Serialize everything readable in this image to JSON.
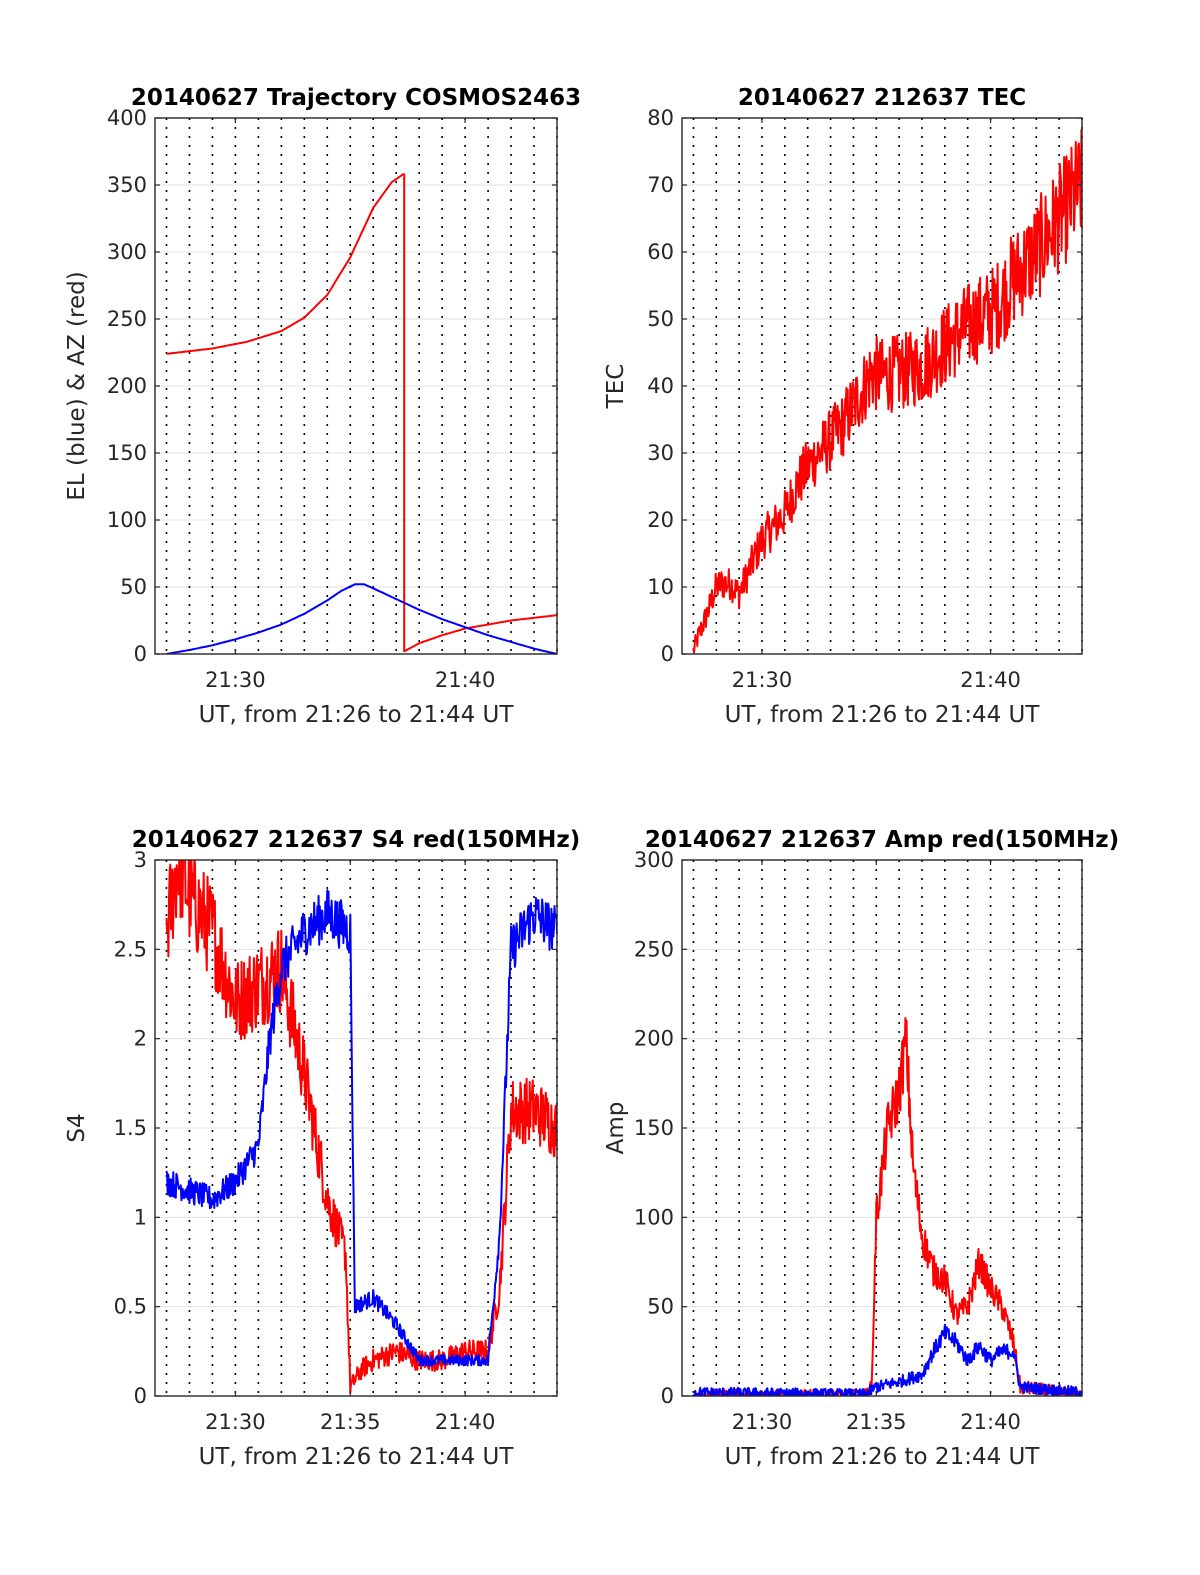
{
  "colors": {
    "red": "#ff0000",
    "blue": "#0000ff",
    "grid": "#e0e0e0",
    "dotted": "#000000",
    "axis": "#262626"
  },
  "chart_data": [
    {
      "id": "trajectory",
      "type": "line",
      "title": "20140627 Trajectory COSMOS2463",
      "xlabel": "UT, from 21:26 to 21:44 UT",
      "ylabel": "EL (blue) & AZ (red)",
      "xlim": [
        26.5,
        44.0
      ],
      "ylim": [
        0,
        400
      ],
      "xticks": [
        {
          "v": 30,
          "label": "21:30"
        },
        {
          "v": 40,
          "label": "21:40"
        }
      ],
      "yticks": [
        0,
        50,
        100,
        150,
        200,
        250,
        300,
        350,
        400
      ],
      "ytick_labels": [
        "0",
        "50",
        "100",
        "150",
        "200",
        "250",
        "300",
        "350",
        "400"
      ],
      "grid": "on",
      "series": [
        {
          "color": "red",
          "noise": 0,
          "x": [
            27.0,
            29.0,
            30.5,
            32.0,
            33.0,
            34.0,
            35.0,
            36.0,
            36.8,
            37.3,
            37.35,
            37.35,
            38.0,
            39.0,
            40.0,
            41.0,
            42.0,
            43.0,
            44.0
          ],
          "y": [
            224,
            228,
            233,
            241,
            251,
            268,
            296,
            333,
            352,
            358,
            358,
            2,
            8,
            14,
            19,
            22,
            25,
            27,
            29
          ]
        },
        {
          "color": "blue",
          "noise": 0,
          "x": [
            27.0,
            28.0,
            29.0,
            30.0,
            31.0,
            32.0,
            33.0,
            34.0,
            34.6,
            35.2,
            35.6,
            36.0,
            37.0,
            38.0,
            39.0,
            40.0,
            41.0,
            42.0,
            43.0,
            44.0
          ],
          "y": [
            0,
            3,
            6.5,
            11,
            16,
            22,
            30,
            40,
            47,
            52,
            52,
            49,
            41,
            33,
            26,
            20,
            14,
            9,
            4,
            0
          ]
        }
      ]
    },
    {
      "id": "tec",
      "type": "line",
      "title": "20140627 212637 TEC",
      "xlabel": "UT, from 21:26 to 21:44 UT",
      "ylabel": "TEC",
      "xlim": [
        26.5,
        44.0
      ],
      "ylim": [
        0,
        80
      ],
      "xticks": [
        {
          "v": 30,
          "label": "21:30"
        },
        {
          "v": 40,
          "label": "21:40"
        }
      ],
      "yticks": [
        0,
        10,
        20,
        30,
        40,
        50,
        60,
        70,
        80
      ],
      "ytick_labels": [
        "0",
        "10",
        "20",
        "30",
        "40",
        "50",
        "60",
        "70",
        "80"
      ],
      "grid": "on",
      "series": [
        {
          "color": "red",
          "noise": 0.7,
          "x": [
            27.0,
            27.2,
            27.6,
            28.0,
            28.2,
            28.6,
            29.0,
            29.5,
            30.0,
            30.5,
            31.0,
            31.5,
            32.0,
            32.5,
            33.0,
            33.5,
            34.0,
            34.5,
            34.8,
            35.2,
            36.0,
            36.6,
            37.0,
            38.0,
            39.0,
            40.0,
            40.5,
            41.0,
            41.5,
            42.0,
            43.0,
            44.0
          ],
          "y": [
            0.5,
            2.5,
            6,
            10,
            10.5,
            10.5,
            9,
            13,
            17,
            19,
            21,
            25,
            28,
            30,
            32,
            34,
            37,
            40,
            42,
            41.5,
            42,
            42.5,
            43,
            46,
            49,
            51,
            53,
            56,
            58,
            60,
            65,
            70
          ]
        }
      ]
    },
    {
      "id": "s4",
      "type": "line",
      "title": "20140627 212637 S4 red(150MHz)",
      "xlabel": "UT, from 21:26 to 21:44 UT",
      "ylabel": "S4",
      "xlim": [
        26.5,
        44.0
      ],
      "ylim": [
        0,
        3
      ],
      "xticks": [
        {
          "v": 30,
          "label": "21:30"
        },
        {
          "v": 35,
          "label": "21:35"
        },
        {
          "v": 40,
          "label": "21:40"
        }
      ],
      "yticks": [
        0,
        0.5,
        1,
        1.5,
        2,
        2.5,
        3
      ],
      "ytick_labels": [
        "0",
        "0.5",
        "1",
        "1.5",
        "2",
        "2.5",
        "3"
      ],
      "grid": "on",
      "series": [
        {
          "color": "red",
          "noise": 0.6,
          "x": [
            27.0,
            27.5,
            28.0,
            29.0,
            30.0,
            31.0,
            32.0,
            33.0,
            34.0,
            34.8,
            35.0,
            35.5,
            36.0,
            37.0,
            38.0,
            39.0,
            40.0,
            41.0,
            41.5,
            42.0,
            43.0,
            44.0
          ],
          "y": [
            2.6,
            3.0,
            2.8,
            2.6,
            2.2,
            2.3,
            2.4,
            1.8,
            1.1,
            0.8,
            0.05,
            0.15,
            0.2,
            0.25,
            0.2,
            0.2,
            0.25,
            0.25,
            0.6,
            1.6,
            1.6,
            1.5
          ]
        },
        {
          "color": "blue",
          "noise": 0.3,
          "x": [
            27.0,
            28.0,
            29.0,
            30.0,
            31.0,
            31.5,
            32.0,
            33.0,
            34.0,
            35.0,
            35.2,
            36.0,
            37.0,
            38.0,
            39.0,
            40.0,
            41.0,
            41.5,
            42.0,
            43.0,
            44.0
          ],
          "y": [
            1.2,
            1.15,
            1.1,
            1.2,
            1.4,
            2.0,
            2.4,
            2.6,
            2.7,
            2.6,
            0.5,
            0.55,
            0.4,
            0.2,
            0.2,
            0.2,
            0.2,
            0.9,
            2.5,
            2.7,
            2.6
          ]
        }
      ]
    },
    {
      "id": "amp",
      "type": "line",
      "title": "20140627 212637 Amp red(150MHz)",
      "xlabel": "UT, from 21:26 to 21:44 UT",
      "ylabel": "Amp",
      "xlim": [
        26.5,
        44.0
      ],
      "ylim": [
        0,
        300
      ],
      "xticks": [
        {
          "v": 30,
          "label": "21:30"
        },
        {
          "v": 35,
          "label": "21:35"
        },
        {
          "v": 40,
          "label": "21:40"
        }
      ],
      "yticks": [
        0,
        50,
        100,
        150,
        200,
        250,
        300
      ],
      "ytick_labels": [
        "0",
        "50",
        "100",
        "150",
        "200",
        "250",
        "300"
      ],
      "grid": "on",
      "series": [
        {
          "color": "red",
          "noise": 0.5,
          "x": [
            27.0,
            34.5,
            34.8,
            35.0,
            35.5,
            36.0,
            36.3,
            36.6,
            37.0,
            37.5,
            38.0,
            38.5,
            39.0,
            39.5,
            40.0,
            40.5,
            41.0,
            41.3,
            44.0
          ],
          "y": [
            0,
            0,
            5,
            100,
            150,
            170,
            200,
            130,
            90,
            70,
            65,
            45,
            50,
            75,
            60,
            50,
            30,
            5,
            0
          ]
        },
        {
          "color": "blue",
          "noise": 0.4,
          "x": [
            27.0,
            34.5,
            35.0,
            36.0,
            37.0,
            37.5,
            38.0,
            38.5,
            39.0,
            39.5,
            40.0,
            40.5,
            41.0,
            41.3,
            44.0
          ],
          "y": [
            2,
            1,
            5,
            8,
            12,
            25,
            35,
            30,
            20,
            28,
            20,
            25,
            25,
            5,
            2
          ]
        }
      ]
    }
  ]
}
